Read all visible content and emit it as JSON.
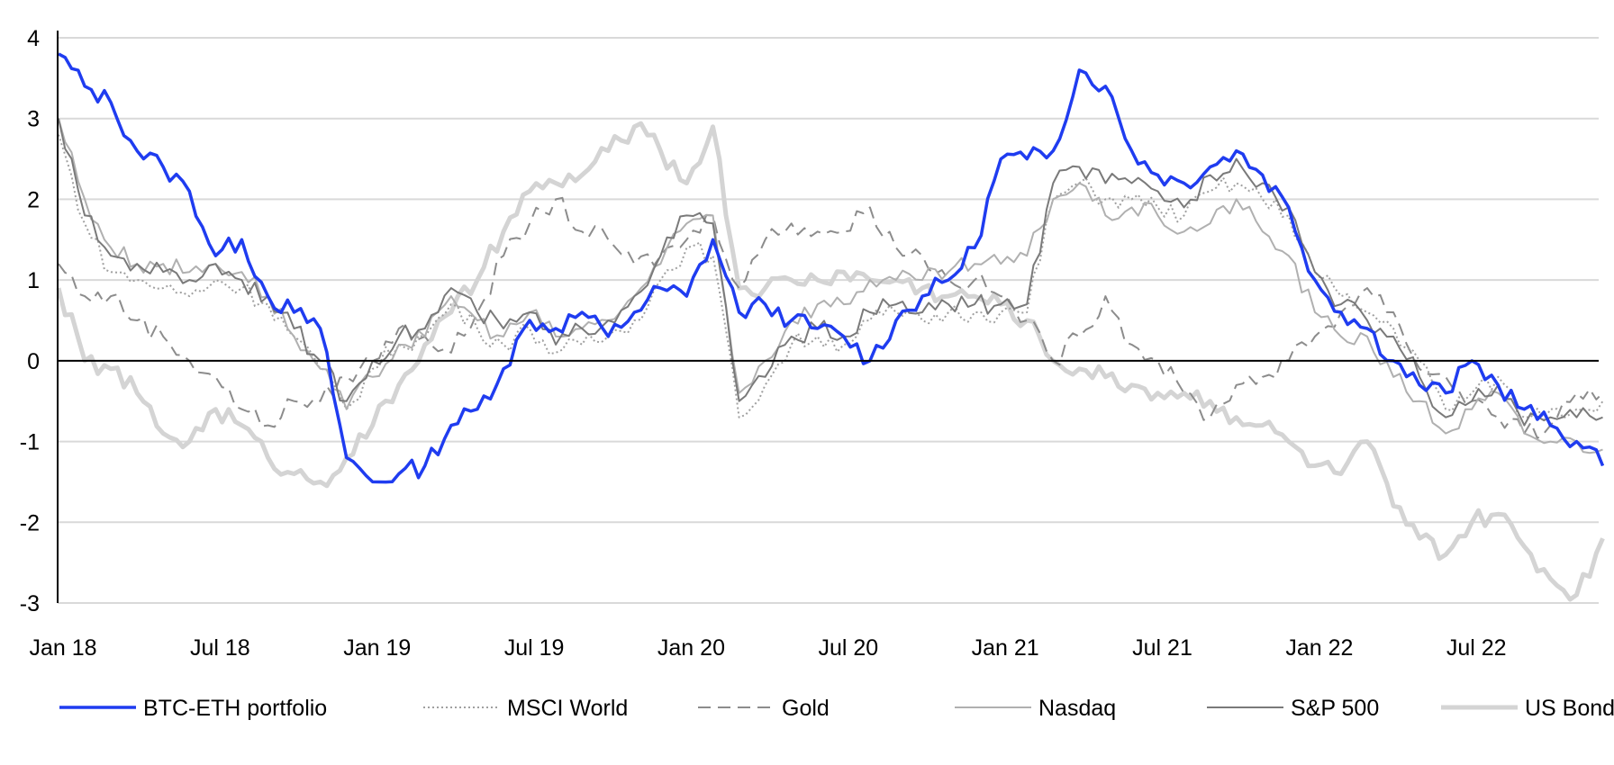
{
  "chart_data": {
    "type": "line",
    "title": "",
    "xlabel": "",
    "ylabel": "",
    "ylim": [
      -3,
      4
    ],
    "yticks": [
      "4",
      "3",
      "2",
      "1",
      "0",
      "-1",
      "-2",
      "-3"
    ],
    "xtick_labels": [
      "Jan 18",
      "Jul 18",
      "Jan 19",
      "Jul 19",
      "Jan 20",
      "Jul 20",
      "Jan 21",
      "Jul 21",
      "Jan 22",
      "Jul 22"
    ],
    "x_start": "Jan 2018",
    "x_end": "Dec 2022",
    "x_frequency": "monthly",
    "grid": true,
    "legend_placement": "bottom",
    "series": [
      {
        "name": "BTC-ETH portfolio",
        "color": "#1f3cf0",
        "style": "solid",
        "values": [
          3.8,
          3.4,
          3.2,
          2.6,
          2.4,
          2.1,
          1.3,
          1.5,
          0.8,
          0.6,
          0.4,
          -1.2,
          -1.5,
          -1.4,
          -1.3,
          -0.8,
          -0.6,
          -0.1,
          0.5,
          0.4,
          0.6,
          0.3,
          0.6,
          0.9,
          0.8,
          1.5,
          0.6,
          0.7,
          0.5,
          0.4,
          0.3,
          0.0,
          0.5,
          0.8,
          1.0,
          1.4,
          2.5,
          2.5,
          2.6,
          3.6,
          3.4,
          2.6,
          2.3,
          2.2,
          2.4,
          2.6,
          2.3,
          1.9,
          1.0,
          0.6,
          0.4,
          0.0,
          -0.3,
          -0.4,
          0.0,
          -0.3,
          -0.6,
          -0.8,
          -1.0,
          -1.3
        ]
      },
      {
        "name": "MSCI World",
        "color": "#a0a0a0",
        "style": "dotted",
        "values": [
          2.8,
          1.7,
          1.1,
          1.0,
          0.9,
          0.8,
          1.0,
          0.9,
          0.7,
          0.3,
          -0.1,
          -0.6,
          -0.1,
          0.2,
          0.3,
          0.7,
          0.4,
          0.2,
          0.4,
          0.1,
          0.2,
          0.3,
          0.5,
          1.0,
          1.4,
          1.3,
          -0.7,
          -0.3,
          0.2,
          0.3,
          0.2,
          0.5,
          0.6,
          0.5,
          0.6,
          0.6,
          0.6,
          0.6,
          2.0,
          2.2,
          2.0,
          2.0,
          1.9,
          1.8,
          2.1,
          2.2,
          2.0,
          1.8,
          1.1,
          0.8,
          0.6,
          0.4,
          0.0,
          -0.6,
          -0.4,
          -0.2,
          -0.7,
          -0.6,
          -0.6,
          -0.5
        ]
      },
      {
        "name": "Gold",
        "color": "#8c8c8c",
        "style": "dashed",
        "values": [
          1.2,
          0.8,
          0.8,
          0.5,
          0.3,
          0.0,
          -0.2,
          -0.6,
          -0.8,
          -0.5,
          -0.5,
          -0.2,
          0.0,
          0.4,
          0.3,
          0.1,
          0.6,
          1.3,
          1.7,
          2.0,
          1.6,
          1.5,
          1.2,
          1.3,
          1.5,
          1.8,
          0.9,
          1.5,
          1.7,
          1.6,
          1.6,
          1.9,
          1.4,
          1.3,
          1.0,
          1.0,
          0.8,
          0.5,
          0.0,
          0.3,
          0.8,
          0.2,
          0.0,
          -0.4,
          -0.7,
          -0.3,
          -0.2,
          0.0,
          0.3,
          0.6,
          0.9,
          0.6,
          -0.1,
          -0.2,
          -0.5,
          -0.7,
          -0.9,
          -0.8,
          -0.4,
          -0.4
        ]
      },
      {
        "name": "Nasdaq",
        "color": "#b0b0b0",
        "style": "solid",
        "values": [
          3.0,
          2.0,
          1.4,
          1.2,
          1.2,
          1.1,
          1.2,
          1.1,
          0.8,
          0.3,
          -0.1,
          -0.6,
          -0.2,
          0.2,
          0.3,
          0.8,
          0.5,
          0.3,
          0.6,
          0.3,
          0.4,
          0.5,
          0.8,
          1.2,
          1.7,
          1.8,
          -0.4,
          0.0,
          0.5,
          0.7,
          0.7,
          1.0,
          1.0,
          1.0,
          1.1,
          1.2,
          1.2,
          1.3,
          2.0,
          2.2,
          1.8,
          1.9,
          1.8,
          1.6,
          1.7,
          2.0,
          1.6,
          1.3,
          0.6,
          0.3,
          0.3,
          -0.2,
          -0.5,
          -0.9,
          -0.6,
          -0.4,
          -0.9,
          -1.0,
          -1.0,
          -1.1
        ]
      },
      {
        "name": "S&P 500",
        "color": "#7a7a7a",
        "style": "solid",
        "values": [
          3.0,
          1.8,
          1.3,
          1.2,
          1.1,
          1.0,
          1.2,
          1.0,
          0.8,
          0.4,
          0.0,
          -0.5,
          0.0,
          0.3,
          0.4,
          0.9,
          0.6,
          0.4,
          0.6,
          0.2,
          0.4,
          0.5,
          0.8,
          1.3,
          1.8,
          1.7,
          -0.5,
          -0.2,
          0.3,
          0.4,
          0.3,
          0.6,
          0.7,
          0.6,
          0.7,
          0.7,
          0.7,
          0.7,
          2.2,
          2.4,
          2.2,
          2.2,
          2.1,
          1.9,
          2.3,
          2.5,
          2.2,
          1.9,
          1.1,
          0.7,
          0.5,
          0.3,
          -0.2,
          -0.7,
          -0.5,
          -0.3,
          -0.8,
          -0.7,
          -0.7,
          -0.7
        ]
      },
      {
        "name": "US Bonds",
        "color": "#d4d4d4",
        "style": "thick",
        "values": [
          0.9,
          0.0,
          -0.1,
          -0.4,
          -0.9,
          -1.0,
          -0.6,
          -0.8,
          -1.2,
          -1.4,
          -1.5,
          -1.2,
          -0.8,
          -0.3,
          0.2,
          0.6,
          1.0,
          1.6,
          2.1,
          2.2,
          2.3,
          2.6,
          2.9,
          2.6,
          2.2,
          2.9,
          0.9,
          0.9,
          1.0,
          1.0,
          1.1,
          1.0,
          1.0,
          0.9,
          0.8,
          0.8,
          0.7,
          0.5,
          0.0,
          -0.1,
          -0.2,
          -0.3,
          -0.4,
          -0.4,
          -0.5,
          -0.7,
          -0.8,
          -1.0,
          -1.3,
          -1.4,
          -1.0,
          -1.8,
          -2.2,
          -2.4,
          -2.0,
          -1.9,
          -2.3,
          -2.7,
          -2.9,
          -2.2
        ]
      }
    ]
  }
}
